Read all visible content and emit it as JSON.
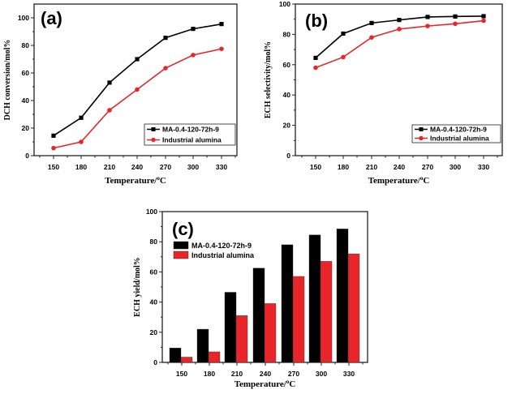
{
  "chart_data": [
    {
      "id": "a",
      "type": "line",
      "panel_label": "(a)",
      "title": "",
      "xlabel": "Temperature/°C",
      "xlabel_parts": {
        "main": "Temperature/",
        "sup": "o",
        "unit": "C"
      },
      "ylabel": "DCH conversion/mol%",
      "x": [
        150,
        180,
        210,
        240,
        270,
        300,
        330
      ],
      "x_ticks": [
        "150",
        "180",
        "210",
        "240",
        "270",
        "300",
        "330"
      ],
      "xlim": [
        126,
        351
      ],
      "ylim": [
        0,
        110
      ],
      "y_ticks": [
        "0",
        "20",
        "40",
        "60",
        "80",
        "100"
      ],
      "y_tick_values": [
        0,
        20,
        40,
        60,
        80,
        100
      ],
      "legend_position": "bottom-right",
      "grid": false,
      "series": [
        {
          "name": "MA-0.4-120-72h-9",
          "color": "#000000",
          "marker": "square",
          "values": [
            14.5,
            27.5,
            53,
            70,
            85.5,
            92,
            95.5
          ]
        },
        {
          "name": "Industrial alumina",
          "color": "#e8262a",
          "marker": "circle",
          "values": [
            5.5,
            10,
            33,
            48,
            63.5,
            73,
            77.5
          ]
        }
      ]
    },
    {
      "id": "b",
      "type": "line",
      "panel_label": "(b)",
      "title": "",
      "xlabel": "Temperature/°C",
      "xlabel_parts": {
        "main": "Temperature/",
        "sup": "o",
        "unit": "C"
      },
      "ylabel": "ECH selectivity/mol%",
      "x": [
        150,
        180,
        210,
        240,
        270,
        300,
        330
      ],
      "x_ticks": [
        "150",
        "180",
        "210",
        "240",
        "270",
        "300",
        "330"
      ],
      "xlim": [
        128,
        350
      ],
      "ylim": [
        0,
        100
      ],
      "y_ticks": [
        "0",
        "20",
        "40",
        "60",
        "80",
        "100"
      ],
      "y_tick_values": [
        0,
        20,
        40,
        60,
        80,
        100
      ],
      "legend_position": "bottom-right",
      "grid": false,
      "series": [
        {
          "name": "MA-0.4-120-72h-9",
          "color": "#000000",
          "marker": "square",
          "values": [
            64.5,
            80.5,
            87.5,
            89.5,
            91.5,
            91.8,
            92
          ]
        },
        {
          "name": "Industrial alumina",
          "color": "#e8262a",
          "marker": "circle",
          "values": [
            58,
            65,
            78,
            83.5,
            85.5,
            87,
            89
          ]
        }
      ]
    },
    {
      "id": "c",
      "type": "bar",
      "panel_label": "(c)",
      "title": "",
      "xlabel": "Temperature/°C",
      "xlabel_parts": {
        "main": "Temperature/",
        "sup": "o",
        "unit": "C"
      },
      "ylabel": "ECH yield/mol%",
      "categories": [
        "150",
        "180",
        "210",
        "240",
        "270",
        "300",
        "330"
      ],
      "ylim": [
        0,
        100
      ],
      "y_ticks": [
        "0",
        "20",
        "40",
        "60",
        "80",
        "100"
      ],
      "y_tick_values": [
        0,
        20,
        40,
        60,
        80,
        100
      ],
      "legend_position": "top-left",
      "grid": false,
      "series": [
        {
          "name": "MA-0.4-120-72h-9",
          "color": "#000000",
          "values": [
            9.5,
            22,
            46.5,
            62.5,
            78,
            84.5,
            88.5
          ]
        },
        {
          "name": "Industrial alumina",
          "color": "#e8262a",
          "values": [
            3.5,
            7,
            31,
            39,
            57,
            67,
            72
          ]
        }
      ]
    }
  ]
}
